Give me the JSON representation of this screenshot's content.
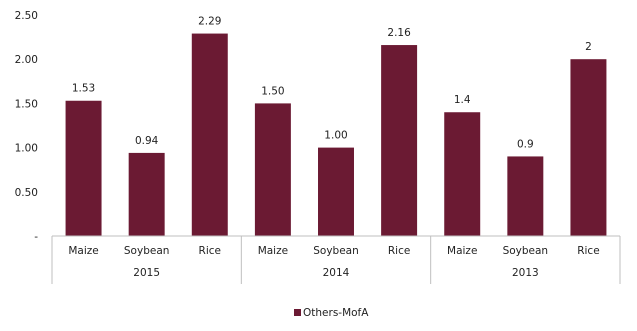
{
  "chart_data": {
    "type": "bar",
    "title": "",
    "xlabel": "",
    "ylabel": "",
    "ylim": [
      0,
      2.5
    ],
    "y_ticks": [
      "-",
      "0.50",
      "1.00",
      "1.50",
      "2.00",
      "2.50"
    ],
    "y_tick_values": [
      0,
      0.5,
      1.0,
      1.5,
      2.0,
      2.5
    ],
    "grid": false,
    "legend_position": "bottom",
    "bar_color": "#6b1a33",
    "groups": [
      {
        "label": "2015",
        "categories": [
          "Maize",
          "Soybean",
          "Rice"
        ],
        "values": [
          1.53,
          0.94,
          2.29
        ],
        "data_labels": [
          "1.53",
          "0.94",
          "2.29"
        ]
      },
      {
        "label": "2014",
        "categories": [
          "Maize",
          "Soybean",
          "Rice"
        ],
        "values": [
          1.5,
          1.0,
          2.16
        ],
        "data_labels": [
          "1.50",
          "1.00",
          "2.16"
        ]
      },
      {
        "label": "2013",
        "categories": [
          "Maize",
          "Soybean",
          "Rice"
        ],
        "values": [
          1.4,
          0.9,
          2.0
        ],
        "data_labels": [
          "1.4",
          "0.9",
          "2"
        ]
      }
    ],
    "series": [
      {
        "name": "Others-MofA"
      }
    ]
  }
}
